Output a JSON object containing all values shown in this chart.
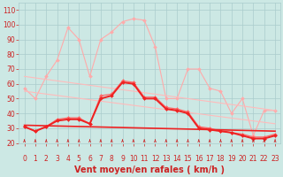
{
  "xlabel": "Vent moyen/en rafales ( km/h )",
  "background_color": "#cce8e4",
  "grid_color": "#aacccc",
  "xlim": [
    -0.5,
    23.5
  ],
  "ylim": [
    20,
    115
  ],
  "yticks": [
    20,
    30,
    40,
    50,
    60,
    70,
    80,
    90,
    100,
    110
  ],
  "xticks": [
    0,
    1,
    2,
    3,
    4,
    5,
    6,
    7,
    8,
    9,
    10,
    11,
    12,
    13,
    14,
    15,
    16,
    17,
    18,
    19,
    20,
    21,
    22,
    23
  ],
  "series": [
    {
      "name": "rafales_light",
      "color": "#ffaaaa",
      "linewidth": 0.8,
      "marker": "D",
      "markersize": 2.0,
      "data_x": [
        0,
        1,
        2,
        3,
        4,
        5,
        6,
        7,
        8,
        9,
        10,
        11,
        12,
        13,
        14,
        15,
        16,
        17,
        18,
        19,
        20,
        21,
        22,
        23
      ],
      "data_y": [
        57,
        50,
        65,
        76,
        98,
        90,
        65,
        90,
        95,
        102,
        104,
        103,
        85,
        50,
        50,
        70,
        70,
        57,
        55,
        40,
        50,
        25,
        42,
        42
      ]
    },
    {
      "name": "trend_high",
      "color": "#ffbbbb",
      "linewidth": 0.8,
      "marker": null,
      "data_x": [
        0,
        23
      ],
      "data_y": [
        65,
        42
      ]
    },
    {
      "name": "trend_low",
      "color": "#ffbbbb",
      "linewidth": 0.8,
      "marker": null,
      "data_x": [
        0,
        23
      ],
      "data_y": [
        55,
        33
      ]
    },
    {
      "name": "moyen_medium",
      "color": "#ff6666",
      "linewidth": 0.9,
      "marker": "D",
      "markersize": 2.0,
      "data_x": [
        0,
        1,
        2,
        3,
        4,
        5,
        6,
        7,
        8,
        9,
        10,
        11,
        12,
        13,
        14,
        15,
        16,
        17,
        18,
        19,
        20,
        21,
        22,
        23
      ],
      "data_y": [
        31,
        28,
        31,
        36,
        37,
        37,
        33,
        52,
        53,
        62,
        61,
        51,
        51,
        44,
        43,
        41,
        31,
        30,
        28,
        27,
        26,
        24,
        24,
        26
      ]
    },
    {
      "name": "moyen_bold",
      "color": "#ee2222",
      "linewidth": 1.4,
      "marker": "D",
      "markersize": 2.0,
      "data_x": [
        0,
        1,
        2,
        3,
        4,
        5,
        6,
        7,
        8,
        9,
        10,
        11,
        12,
        13,
        14,
        15,
        16,
        17,
        18,
        19,
        20,
        21,
        22,
        23
      ],
      "data_y": [
        31,
        28,
        31,
        35,
        36,
        36,
        33,
        50,
        52,
        61,
        60,
        50,
        50,
        43,
        42,
        40,
        30,
        29,
        28,
        27,
        25,
        23,
        23,
        25
      ]
    },
    {
      "name": "trend_bold",
      "color": "#ee2222",
      "linewidth": 1.2,
      "marker": null,
      "data_x": [
        0,
        23
      ],
      "data_y": [
        32,
        28
      ]
    }
  ],
  "arrow_color": "#cc2222",
  "xlabel_color": "#cc2222",
  "xlabel_fontsize": 7,
  "tick_color": "#cc2222",
  "tick_fontsize": 5.5
}
